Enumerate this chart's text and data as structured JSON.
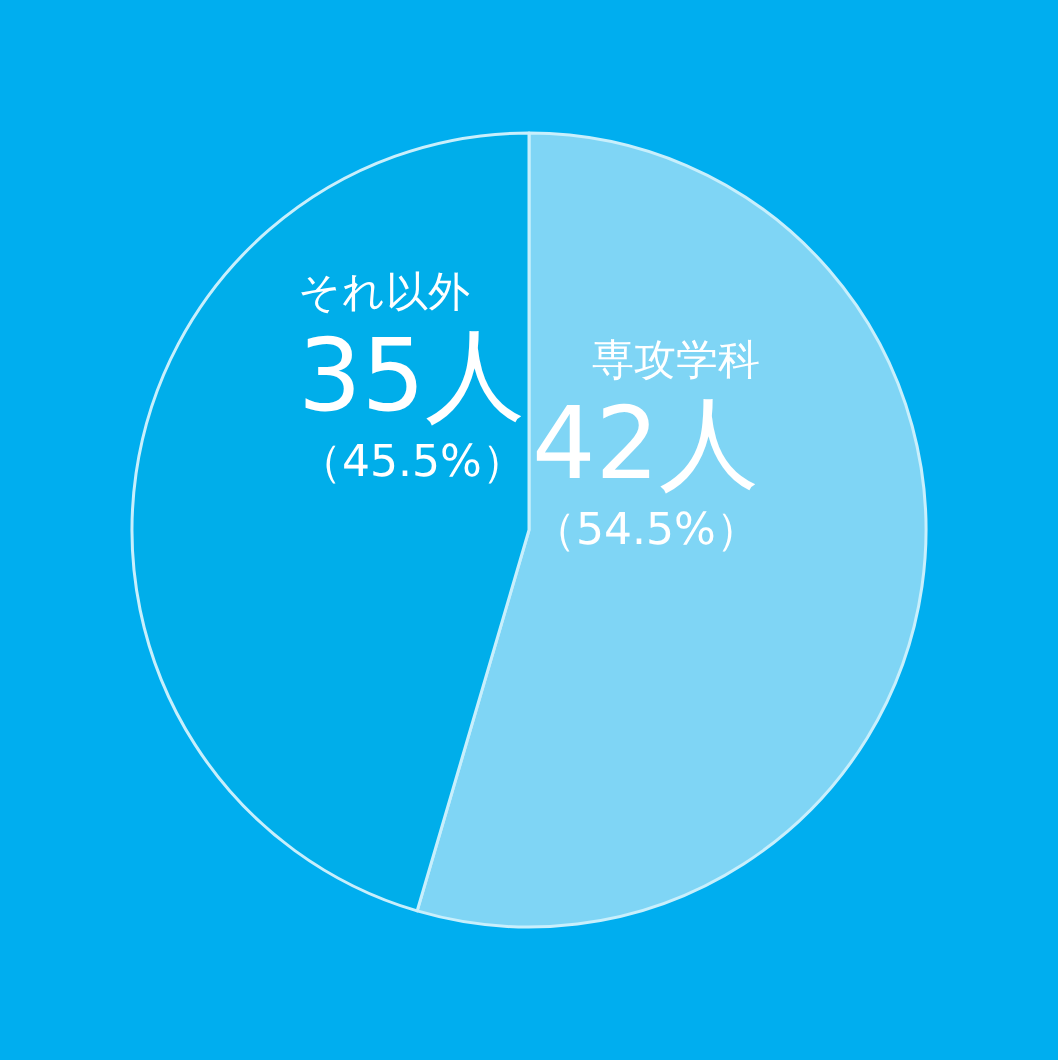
{
  "chart_data": {
    "type": "pie",
    "categories": [
      "専攻学科",
      "それ以外"
    ],
    "values": [
      42,
      35
    ],
    "colors": [
      "#7fd5f5",
      "#00aeea"
    ],
    "value_labels": [
      "42人（54.5%）",
      "35人（45.5%）"
    ],
    "legend": false
  }
}
